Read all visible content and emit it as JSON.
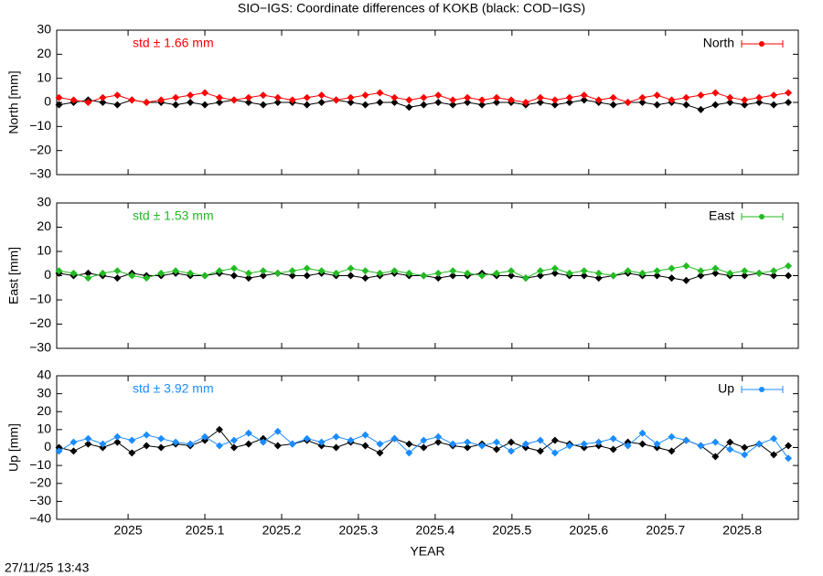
{
  "title": "SIO−IGS: Coordinate differences of KOKB (black: COD−IGS)",
  "timestamp": "27/11/25 13:43",
  "chart_data": [
    {
      "type": "line",
      "ylabel": "North [mm]",
      "annotation": "std ± 1.66 mm",
      "legend": "upper right",
      "xlim": [
        2024.907,
        2025.873
      ],
      "xticks": [
        2025,
        2025.1,
        2025.2,
        2025.3,
        2025.4,
        2025.5,
        2025.6,
        2025.7,
        2025.8
      ],
      "ylim": [
        -30,
        30
      ],
      "yticks": [
        {
          "value": -30,
          "label": "−30"
        },
        {
          "value": -20,
          "label": "−20"
        },
        {
          "value": -10,
          "label": "−10"
        },
        0,
        10,
        20,
        30
      ],
      "x": [
        2024.91,
        2024.929,
        2024.948,
        2024.967,
        2024.986,
        2025.005,
        2025.024,
        2025.043,
        2025.062,
        2025.081,
        2025.1,
        2025.119,
        2025.138,
        2025.157,
        2025.176,
        2025.195,
        2025.214,
        2025.233,
        2025.252,
        2025.271,
        2025.29,
        2025.309,
        2025.328,
        2025.347,
        2025.366,
        2025.385,
        2025.404,
        2025.423,
        2025.442,
        2025.461,
        2025.48,
        2025.499,
        2025.518,
        2025.537,
        2025.556,
        2025.575,
        2025.594,
        2025.613,
        2025.632,
        2025.651,
        2025.67,
        2025.689,
        2025.708,
        2025.727,
        2025.746,
        2025.765,
        2025.784,
        2025.803,
        2025.822,
        2025.841,
        2025.86
      ],
      "series": [
        {
          "color": "#000000",
          "values": [
            -1,
            0,
            1,
            0,
            -1,
            1,
            0,
            0,
            -1,
            0,
            -1,
            0,
            1,
            0,
            -1,
            0,
            0,
            -1,
            0,
            1,
            0,
            -1,
            0,
            0,
            -2,
            -1,
            0,
            -1,
            0,
            -1,
            0,
            0,
            -1,
            0,
            -1,
            0,
            1,
            0,
            -1,
            0,
            0,
            -1,
            0,
            -1,
            -3,
            -1,
            0,
            -1,
            0,
            -1,
            0
          ]
        },
        {
          "name": "North",
          "color": "#ff0000",
          "values": [
            2,
            1,
            0,
            2,
            3,
            1,
            0,
            1,
            2,
            3,
            4,
            2,
            1,
            2,
            3,
            2,
            1,
            2,
            3,
            1,
            2,
            3,
            4,
            2,
            1,
            2,
            3,
            1,
            2,
            1,
            2,
            1,
            0,
            2,
            1,
            2,
            3,
            1,
            2,
            0,
            2,
            3,
            1,
            2,
            3,
            4,
            2,
            1,
            2,
            3,
            4
          ]
        }
      ]
    },
    {
      "type": "line",
      "ylabel": "East [mm]",
      "annotation": "std ± 1.53 mm",
      "legend": "upper right",
      "xlim": [
        2024.907,
        2025.873
      ],
      "xticks": [
        2025,
        2025.1,
        2025.2,
        2025.3,
        2025.4,
        2025.5,
        2025.6,
        2025.7,
        2025.8
      ],
      "ylim": [
        -30,
        30
      ],
      "yticks": [
        {
          "value": -30,
          "label": "−30"
        },
        {
          "value": -20,
          "label": "−20"
        },
        {
          "value": -10,
          "label": "−10"
        },
        0,
        10,
        20,
        30
      ],
      "x": [
        2024.91,
        2024.929,
        2024.948,
        2024.967,
        2024.986,
        2025.005,
        2025.024,
        2025.043,
        2025.062,
        2025.081,
        2025.1,
        2025.119,
        2025.138,
        2025.157,
        2025.176,
        2025.195,
        2025.214,
        2025.233,
        2025.252,
        2025.271,
        2025.29,
        2025.309,
        2025.328,
        2025.347,
        2025.366,
        2025.385,
        2025.404,
        2025.423,
        2025.442,
        2025.461,
        2025.48,
        2025.499,
        2025.518,
        2025.537,
        2025.556,
        2025.575,
        2025.594,
        2025.613,
        2025.632,
        2025.651,
        2025.67,
        2025.689,
        2025.708,
        2025.727,
        2025.746,
        2025.765,
        2025.784,
        2025.803,
        2025.822,
        2025.841,
        2025.86
      ],
      "series": [
        {
          "color": "#000000",
          "values": [
            1,
            0,
            1,
            0,
            -1,
            1,
            0,
            0,
            1,
            0,
            0,
            1,
            0,
            -1,
            0,
            1,
            0,
            0,
            1,
            0,
            0,
            -1,
            0,
            1,
            0,
            0,
            -1,
            0,
            0,
            1,
            0,
            0,
            -1,
            0,
            1,
            0,
            0,
            -1,
            0,
            1,
            0,
            0,
            -1,
            -2,
            0,
            1,
            0,
            0,
            1,
            0,
            0
          ]
        },
        {
          "name": "East",
          "color": "#22bb22",
          "values": [
            2,
            1,
            -1,
            1,
            2,
            0,
            -1,
            1,
            2,
            1,
            0,
            2,
            3,
            1,
            2,
            1,
            2,
            3,
            2,
            1,
            3,
            2,
            1,
            2,
            1,
            0,
            1,
            2,
            1,
            0,
            1,
            2,
            -1,
            2,
            3,
            1,
            2,
            1,
            0,
            2,
            1,
            2,
            3,
            4,
            2,
            3,
            1,
            2,
            1,
            2,
            4
          ]
        }
      ]
    },
    {
      "type": "line",
      "ylabel": "Up [mm]",
      "annotation": "std ± 3.92 mm",
      "legend": "upper right",
      "xlabel": "YEAR",
      "xlim": [
        2024.907,
        2025.873
      ],
      "xticks": [
        2025,
        2025.1,
        2025.2,
        2025.3,
        2025.4,
        2025.5,
        2025.6,
        2025.7,
        2025.8
      ],
      "ylim": [
        -40,
        40
      ],
      "yticks": [
        {
          "value": -40,
          "label": "−40"
        },
        {
          "value": -30,
          "label": "−30"
        },
        {
          "value": -20,
          "label": "−20"
        },
        {
          "value": -10,
          "label": "−10"
        },
        0,
        10,
        20,
        30,
        40
      ],
      "x": [
        2024.91,
        2024.929,
        2024.948,
        2024.967,
        2024.986,
        2025.005,
        2025.024,
        2025.043,
        2025.062,
        2025.081,
        2025.1,
        2025.119,
        2025.138,
        2025.157,
        2025.176,
        2025.195,
        2025.214,
        2025.233,
        2025.252,
        2025.271,
        2025.29,
        2025.309,
        2025.328,
        2025.347,
        2025.366,
        2025.385,
        2025.404,
        2025.423,
        2025.442,
        2025.461,
        2025.48,
        2025.499,
        2025.518,
        2025.537,
        2025.556,
        2025.575,
        2025.594,
        2025.613,
        2025.632,
        2025.651,
        2025.67,
        2025.689,
        2025.708,
        2025.727,
        2025.746,
        2025.765,
        2025.784,
        2025.803,
        2025.822,
        2025.841,
        2025.86
      ],
      "series": [
        {
          "color": "#000000",
          "values": [
            0,
            -2,
            2,
            0,
            3,
            -3,
            1,
            0,
            2,
            1,
            4,
            10,
            0,
            2,
            5,
            1,
            2,
            4,
            1,
            0,
            3,
            1,
            -3,
            5,
            2,
            0,
            3,
            1,
            0,
            2,
            -1,
            3,
            0,
            -2,
            4,
            2,
            0,
            1,
            -1,
            3,
            2,
            0,
            -2,
            4,
            1,
            -5,
            3,
            0,
            2,
            -4,
            1
          ]
        },
        {
          "name": "Up",
          "color": "#1a8cff",
          "values": [
            -2,
            3,
            5,
            2,
            6,
            4,
            7,
            5,
            3,
            2,
            6,
            1,
            4,
            8,
            3,
            9,
            2,
            5,
            3,
            6,
            4,
            7,
            2,
            5,
            -3,
            4,
            6,
            2,
            3,
            1,
            3,
            -2,
            2,
            4,
            -3,
            1,
            2,
            3,
            5,
            1,
            8,
            2,
            6,
            4,
            1,
            3,
            -1,
            -4,
            2,
            5,
            -6
          ]
        }
      ]
    }
  ]
}
